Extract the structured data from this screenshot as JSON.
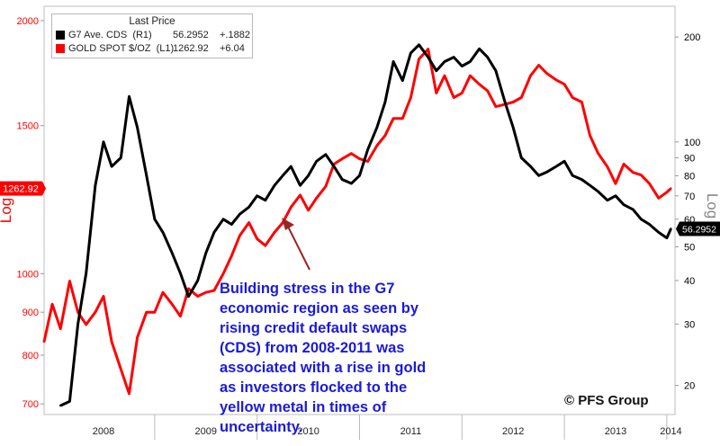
{
  "chart_data": {
    "type": "line",
    "legend": {
      "title": "Last Price",
      "placement": "top-left",
      "entries": [
        {
          "name": "G7 Ave. CDS  (R1)",
          "value": "56.2952",
          "change": "+.1882",
          "color": "#000000"
        },
        {
          "name": "GOLD SPOT $/OZ  (L1)",
          "value": "1262.92",
          "change": "+6.04",
          "color": "#ff0000"
        }
      ]
    },
    "left_axis": {
      "label": "Log",
      "scale": "log",
      "range": [
        680,
        2080
      ],
      "ticks": [
        700,
        800,
        900,
        1000,
        1500,
        2000
      ],
      "color": "#ff0000",
      "last_value_tag": "1262.92"
    },
    "right_axis": {
      "label": "Log",
      "scale": "log",
      "range": [
        16.5,
        245
      ],
      "ticks": [
        20,
        30,
        40,
        50,
        60,
        70,
        80,
        90,
        100,
        200
      ],
      "color": "#000000",
      "last_value_tag": "56.2952"
    },
    "x_axis": {
      "range": [
        2007.92,
        2014.08
      ],
      "ticks": [
        2008,
        2009,
        2010,
        2011,
        2012,
        2013,
        2014
      ]
    },
    "series": [
      {
        "name": "GOLD SPOT $/OZ",
        "axis": "left",
        "color": "#ff0000",
        "x": [
          2007.92,
          2008.0,
          2008.08,
          2008.17,
          2008.25,
          2008.33,
          2008.42,
          2008.5,
          2008.58,
          2008.67,
          2008.75,
          2008.83,
          2008.92,
          2009.0,
          2009.08,
          2009.17,
          2009.25,
          2009.33,
          2009.42,
          2009.5,
          2009.58,
          2009.67,
          2009.75,
          2009.83,
          2009.92,
          2010.0,
          2010.08,
          2010.17,
          2010.25,
          2010.33,
          2010.42,
          2010.5,
          2010.58,
          2010.67,
          2010.75,
          2010.83,
          2010.92,
          2011.0,
          2011.08,
          2011.17,
          2011.25,
          2011.33,
          2011.42,
          2011.5,
          2011.58,
          2011.67,
          2011.75,
          2011.83,
          2011.92,
          2012.0,
          2012.08,
          2012.17,
          2012.25,
          2012.33,
          2012.42,
          2012.5,
          2012.58,
          2012.67,
          2012.75,
          2012.83,
          2012.92,
          2013.0,
          2013.08,
          2013.17,
          2013.25,
          2013.33,
          2013.42,
          2013.5,
          2013.58,
          2013.67,
          2013.75,
          2013.83,
          2013.92,
          2014.0,
          2014.04
        ],
        "values": [
          830,
          920,
          860,
          980,
          900,
          870,
          900,
          940,
          830,
          770,
          720,
          840,
          900,
          900,
          950,
          920,
          890,
          960,
          940,
          950,
          955,
          1000,
          1050,
          1110,
          1150,
          1100,
          1080,
          1120,
          1150,
          1200,
          1240,
          1190,
          1230,
          1270,
          1350,
          1370,
          1390,
          1370,
          1360,
          1420,
          1460,
          1530,
          1530,
          1620,
          1800,
          1850,
          1640,
          1720,
          1620,
          1640,
          1720,
          1680,
          1650,
          1580,
          1590,
          1600,
          1620,
          1720,
          1770,
          1730,
          1700,
          1680,
          1620,
          1600,
          1460,
          1390,
          1340,
          1280,
          1350,
          1320,
          1310,
          1280,
          1230,
          1250,
          1262.92
        ]
      },
      {
        "name": "G7 Ave. CDS",
        "axis": "right",
        "color": "#000000",
        "x": [
          2008.08,
          2008.17,
          2008.25,
          2008.33,
          2008.42,
          2008.5,
          2008.58,
          2008.67,
          2008.75,
          2008.83,
          2008.92,
          2009.0,
          2009.08,
          2009.17,
          2009.25,
          2009.33,
          2009.42,
          2009.5,
          2009.58,
          2009.67,
          2009.75,
          2009.83,
          2009.92,
          2010.0,
          2010.08,
          2010.17,
          2010.25,
          2010.33,
          2010.42,
          2010.5,
          2010.58,
          2010.67,
          2010.75,
          2010.83,
          2010.92,
          2011.0,
          2011.08,
          2011.17,
          2011.25,
          2011.33,
          2011.42,
          2011.5,
          2011.58,
          2011.67,
          2011.75,
          2011.83,
          2011.92,
          2012.0,
          2012.08,
          2012.17,
          2012.25,
          2012.33,
          2012.42,
          2012.5,
          2012.58,
          2012.67,
          2012.75,
          2012.83,
          2012.92,
          2013.0,
          2013.08,
          2013.17,
          2013.25,
          2013.33,
          2013.42,
          2013.5,
          2013.58,
          2013.67,
          2013.75,
          2013.83,
          2013.92,
          2014.0,
          2014.04
        ],
        "values": [
          17.5,
          18,
          30,
          42,
          75,
          100,
          85,
          90,
          135,
          110,
          80,
          60,
          55,
          48,
          42,
          36,
          40,
          48,
          55,
          60,
          58,
          62,
          65,
          70,
          68,
          75,
          80,
          85,
          75,
          80,
          88,
          92,
          85,
          78,
          76,
          80,
          95,
          110,
          130,
          170,
          150,
          180,
          190,
          175,
          160,
          170,
          175,
          165,
          170,
          185,
          175,
          160,
          130,
          110,
          90,
          85,
          80,
          82,
          85,
          88,
          80,
          78,
          75,
          72,
          68,
          70,
          66,
          64,
          60,
          58,
          55,
          53,
          56.2952
        ]
      }
    ],
    "annotation": {
      "text": "Building stress in the G7 economic region as seen by rising credit default swaps (CDS) from 2008-2011 was associated with a rise in gold as investors flocked to the yellow metal in times of uncertainty.",
      "arrow_color": "#9b2525"
    },
    "copyright": "© PFS Group"
  }
}
